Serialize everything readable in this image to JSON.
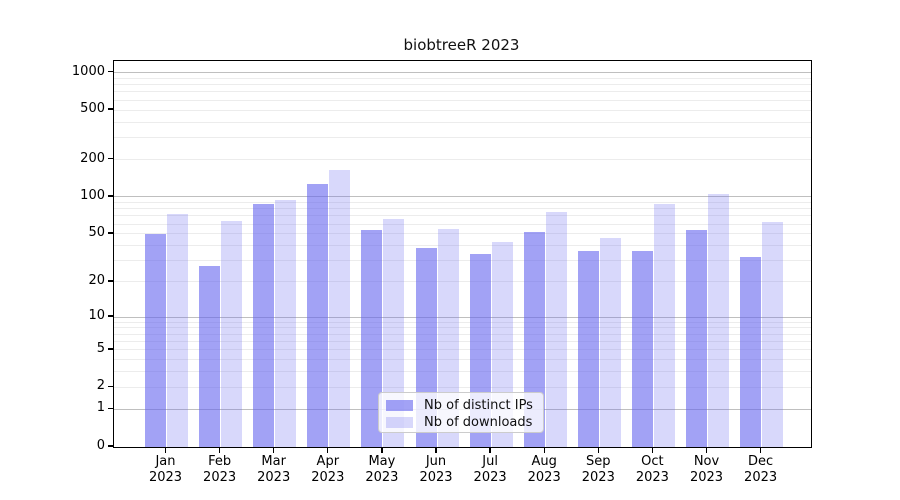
{
  "title": "biobtreeR 2023",
  "chart_data": {
    "type": "bar",
    "title": "biobtreeR 2023",
    "categories": [
      "Jan 2023",
      "Feb 2023",
      "Mar 2023",
      "Apr 2023",
      "May 2023",
      "Jun 2023",
      "Jul 2023",
      "Aug 2023",
      "Sep 2023",
      "Oct 2023",
      "Nov 2023",
      "Dec 2023"
    ],
    "series": [
      {
        "name": "Nb of distinct IPs",
        "color": "rgba(100,100,238,0.60)",
        "values": [
          50,
          27,
          87,
          127,
          54,
          38,
          34,
          52,
          36,
          36,
          54,
          32
        ]
      },
      {
        "name": "Nb of downloads",
        "color": "rgba(100,100,238,0.25)",
        "values": [
          72,
          64,
          95,
          165,
          66,
          55,
          43,
          75,
          46,
          88,
          105,
          62
        ]
      }
    ],
    "y_scale": "log1p",
    "y_ticks": [
      0,
      1,
      2,
      5,
      10,
      20,
      50,
      100,
      200,
      500,
      1000
    ],
    "y_major_gridlines": [
      1,
      10,
      100,
      1000
    ],
    "y_minor_gridlines": [
      2,
      3,
      4,
      5,
      6,
      7,
      8,
      9,
      20,
      30,
      40,
      50,
      60,
      70,
      80,
      90,
      200,
      300,
      400,
      500,
      600,
      700,
      800,
      900
    ],
    "ylim": [
      0,
      1240
    ],
    "xlabel": "",
    "ylabel": "",
    "grid": "horizontal",
    "legend_position": "lower center inside plot"
  },
  "colors": {
    "bar_distinct_ips": "rgba(100,100,238,0.60)",
    "bar_downloads": "rgba(100,100,238,0.25)",
    "major_grid": "#bfbfbf",
    "minor_grid": "#ececec",
    "spine": "#000000",
    "legend_border": "#cccccc"
  }
}
